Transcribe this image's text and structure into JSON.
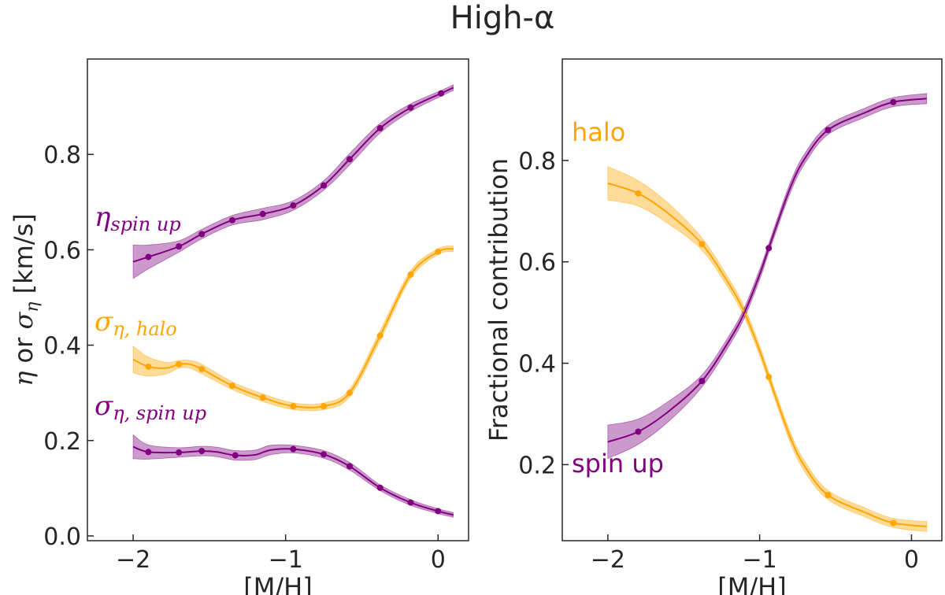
{
  "suptitle": "High-α",
  "colors": {
    "purple": "#800080",
    "orange": "#FFA500",
    "axis": "#262626"
  },
  "chart_data": [
    {
      "type": "line",
      "xlabel": "[M/H]",
      "ylabel": {
        "eta": "η",
        "or": " or ",
        "sigma": "σ",
        "sub": "η",
        "unit": " [km/s]"
      },
      "xlim": [
        -2.3,
        0.2
      ],
      "ylim": [
        -0.01,
        1.0
      ],
      "xticks": [
        -2,
        -1,
        0
      ],
      "xtick_labels": [
        "−2",
        "−1",
        "0"
      ],
      "yticks": [
        0.0,
        0.2,
        0.4,
        0.6,
        0.8
      ],
      "ytick_labels": [
        "0.0",
        "0.2",
        "0.4",
        "0.6",
        "0.8"
      ],
      "series": [
        {
          "name": {
            "main": "η",
            "sub": "spin up"
          },
          "color": "#800080",
          "x": [
            -2.0,
            -1.9,
            -1.7,
            -1.55,
            -1.35,
            -1.15,
            -0.95,
            -0.75,
            -0.58,
            -0.38,
            -0.18,
            0.02,
            0.1
          ],
          "y": [
            0.575,
            0.585,
            0.607,
            0.633,
            0.662,
            0.675,
            0.693,
            0.735,
            0.79,
            0.855,
            0.898,
            0.928,
            0.94
          ],
          "band": [
            0.035,
            0.025,
            0.012,
            0.01,
            0.01,
            0.012,
            0.01,
            0.01,
            0.012,
            0.01,
            0.008,
            0.006,
            0.006
          ],
          "markers": [
            1,
            2,
            3,
            4,
            5,
            6,
            7,
            8,
            9,
            10,
            11
          ]
        },
        {
          "name": {
            "main": "σ",
            "sub": "η, halo"
          },
          "color": "#FFA500",
          "x": [
            -2.0,
            -1.9,
            -1.78,
            -1.7,
            -1.63,
            -1.55,
            -1.35,
            -1.15,
            -0.95,
            -0.75,
            -0.58,
            -0.38,
            -0.18,
            0.0,
            0.1
          ],
          "y": [
            0.37,
            0.355,
            0.352,
            0.36,
            0.36,
            0.35,
            0.315,
            0.29,
            0.272,
            0.272,
            0.3,
            0.42,
            0.548,
            0.596,
            0.602
          ],
          "band": [
            0.028,
            0.02,
            0.012,
            0.008,
            0.008,
            0.01,
            0.008,
            0.008,
            0.007,
            0.007,
            0.008,
            0.01,
            0.008,
            0.006,
            0.006
          ],
          "markers": [
            1,
            3,
            5,
            6,
            7,
            8,
            9,
            10,
            11,
            12,
            13
          ]
        },
        {
          "name": {
            "main": "σ",
            "sub": "η, spin up"
          },
          "color": "#800080",
          "x": [
            -2.0,
            -1.9,
            -1.7,
            -1.55,
            -1.45,
            -1.33,
            -1.2,
            -1.1,
            -0.95,
            -0.75,
            -0.58,
            -0.38,
            -0.18,
            0.0,
            0.1
          ],
          "y": [
            0.187,
            0.176,
            0.175,
            0.178,
            0.176,
            0.169,
            0.17,
            0.18,
            0.182,
            0.171,
            0.146,
            0.101,
            0.07,
            0.052,
            0.044
          ],
          "band": [
            0.025,
            0.015,
            0.01,
            0.01,
            0.01,
            0.01,
            0.01,
            0.01,
            0.008,
            0.008,
            0.008,
            0.006,
            0.006,
            0.005,
            0.005
          ],
          "markers": [
            1,
            2,
            3,
            5,
            8,
            9,
            10,
            11,
            12,
            13
          ]
        }
      ]
    },
    {
      "type": "line",
      "xlabel": "[M/H]",
      "ylabel": "Fractional contribution",
      "xlim": [
        -2.3,
        0.2
      ],
      "ylim": [
        0.05,
        1.0
      ],
      "xticks": [
        -2,
        -1,
        0
      ],
      "xtick_labels": [
        "−2",
        "−1",
        "0"
      ],
      "yticks": [
        0.2,
        0.4,
        0.6,
        0.8
      ],
      "ytick_labels": [
        "0.2",
        "0.4",
        "0.6",
        "0.8"
      ],
      "series": [
        {
          "name": "halo",
          "color": "#FFA500",
          "x": [
            -2.0,
            -1.8,
            -1.6,
            -1.38,
            -1.2,
            -1.1,
            -1.0,
            -0.94,
            -0.8,
            -0.7,
            -0.55,
            -0.3,
            -0.12,
            0.1
          ],
          "y": [
            0.755,
            0.735,
            0.695,
            0.635,
            0.555,
            0.5,
            0.425,
            0.373,
            0.255,
            0.195,
            0.14,
            0.105,
            0.085,
            0.078
          ],
          "band": [
            0.033,
            0.025,
            0.02,
            0.012,
            0.01,
            0.01,
            0.01,
            0.009,
            0.01,
            0.01,
            0.009,
            0.009,
            0.009,
            0.01
          ],
          "markers": [
            1,
            3,
            7,
            10,
            12
          ]
        },
        {
          "name": "spin up",
          "color": "#800080",
          "x": [
            -2.0,
            -1.8,
            -1.6,
            -1.38,
            -1.2,
            -1.1,
            -1.0,
            -0.94,
            -0.8,
            -0.7,
            -0.55,
            -0.3,
            -0.12,
            0.1
          ],
          "y": [
            0.245,
            0.265,
            0.305,
            0.365,
            0.445,
            0.5,
            0.575,
            0.627,
            0.745,
            0.805,
            0.86,
            0.895,
            0.915,
            0.922
          ],
          "band": [
            0.033,
            0.025,
            0.02,
            0.012,
            0.01,
            0.01,
            0.01,
            0.009,
            0.01,
            0.01,
            0.009,
            0.009,
            0.009,
            0.01
          ],
          "markers": [
            1,
            3,
            7,
            10,
            12
          ]
        }
      ]
    }
  ]
}
